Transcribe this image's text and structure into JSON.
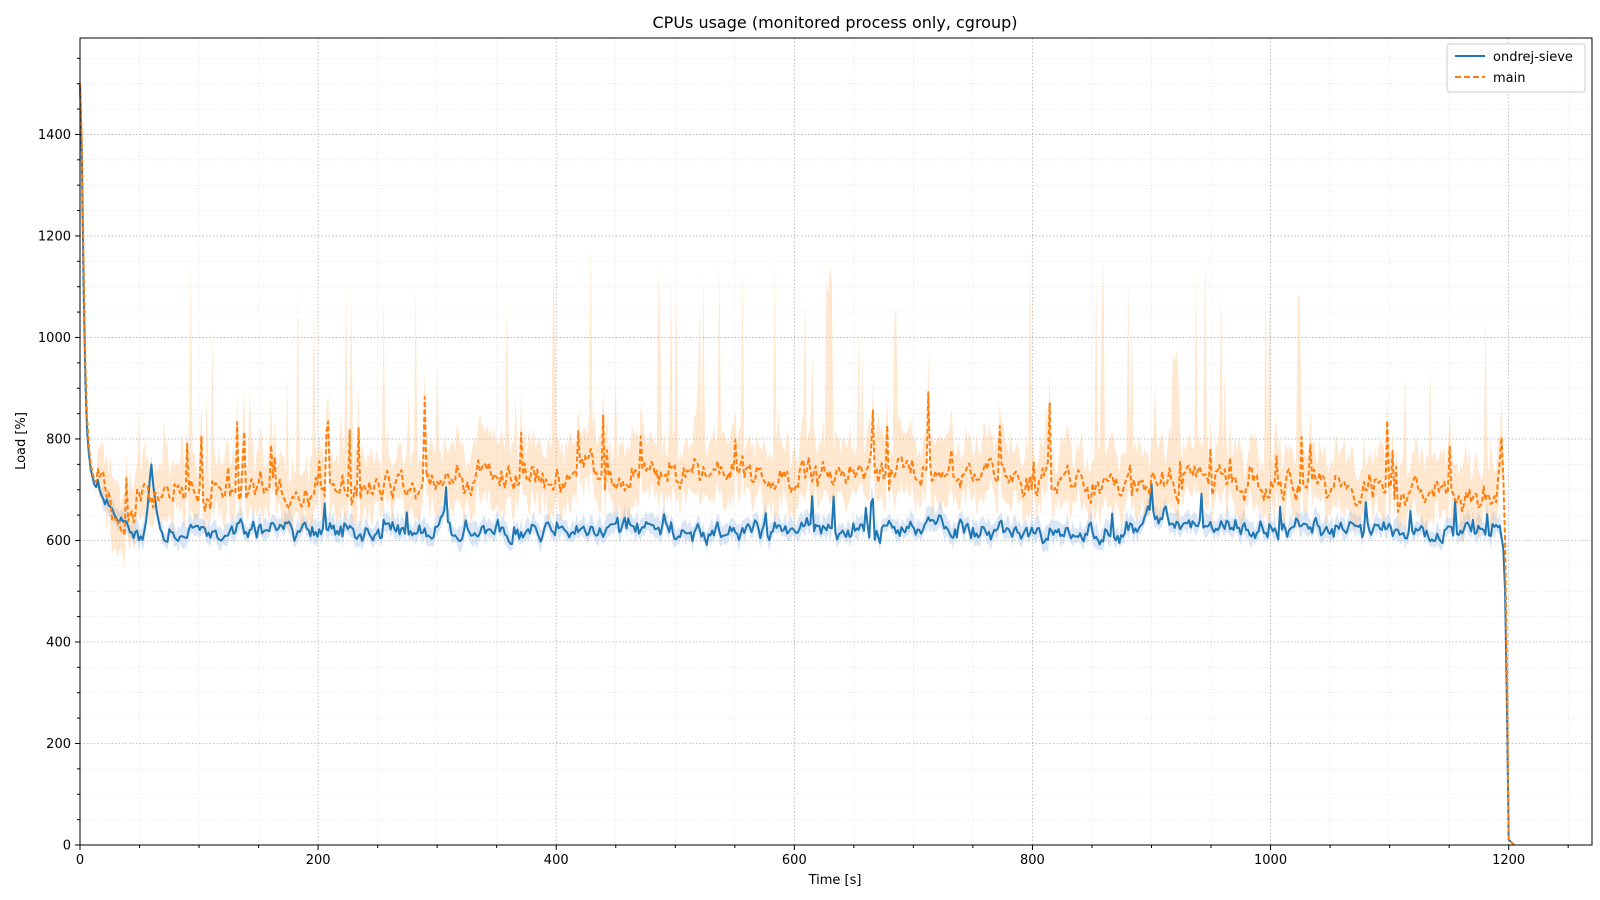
{
  "chart_data": {
    "type": "line",
    "title": "CPUs usage (monitored process only, cgroup)",
    "xlabel": "Time [s]",
    "ylabel": "Load [%]",
    "xlim": [
      0,
      1270
    ],
    "ylim": [
      0,
      1590
    ],
    "x_ticks": [
      0,
      200,
      400,
      600,
      800,
      1000,
      1200
    ],
    "x_minor_step": 50,
    "y_ticks": [
      0,
      200,
      400,
      600,
      800,
      1000,
      1200,
      1400
    ],
    "y_minor_step": 50,
    "grid": true,
    "legend_position": "top-right",
    "series": [
      {
        "name": "ondrej-sieve",
        "style": "solid",
        "color": "#1f77b4",
        "band_color": "#aec7e8",
        "x": [
          0,
          1,
          3,
          5,
          7,
          9,
          12,
          15,
          20,
          25,
          30,
          35,
          40,
          45,
          50,
          55,
          60,
          65,
          70,
          75,
          80,
          90,
          100,
          110,
          120,
          150,
          200,
          250,
          300,
          350,
          400,
          450,
          500,
          550,
          600,
          650,
          700,
          750,
          800,
          850,
          880,
          900,
          950,
          1000,
          1050,
          1100,
          1150,
          1190,
          1196,
          1198,
          1199,
          1200,
          1205
        ],
        "y": [
          1500,
          1450,
          1100,
          850,
          780,
          740,
          710,
          700,
          690,
          665,
          640,
          625,
          615,
          620,
          600,
          610,
          750,
          640,
          620,
          630,
          615,
          625,
          612,
          620,
          615,
          620,
          615,
          618,
          625,
          620,
          630,
          625,
          620,
          618,
          625,
          620,
          625,
          620,
          618,
          612,
          608,
          640,
          632,
          625,
          622,
          615,
          618,
          625,
          600,
          400,
          150,
          10,
          0
        ],
        "noise_amplitude": 28
      },
      {
        "name": "main",
        "style": "dashed",
        "color": "#ff7f0e",
        "band_color": "#ffbb78",
        "x": [
          0,
          1,
          3,
          5,
          7,
          9,
          12,
          15,
          20,
          25,
          30,
          35,
          40,
          45,
          47,
          50,
          55,
          60,
          65,
          70,
          75,
          80,
          90,
          100,
          110,
          120,
          150,
          200,
          250,
          300,
          350,
          400,
          420,
          450,
          500,
          550,
          600,
          650,
          695,
          700,
          750,
          800,
          850,
          880,
          900,
          950,
          1000,
          1050,
          1100,
          1150,
          1190,
          1194,
          1196,
          1198,
          1199,
          1200,
          1205
        ],
        "y": [
          1500,
          1470,
          1150,
          880,
          800,
          750,
          720,
          710,
          700,
          670,
          645,
          630,
          625,
          640,
          680,
          700,
          710,
          700,
          690,
          700,
          690,
          705,
          700,
          695,
          690,
          700,
          700,
          700,
          705,
          710,
          715,
          725,
          735,
          728,
          730,
          728,
          730,
          728,
          745,
          735,
          728,
          720,
          712,
          700,
          712,
          715,
          708,
          705,
          700,
          700,
          690,
          780,
          700,
          500,
          200,
          10,
          0
        ],
        "noise_amplitude": 40,
        "spike_amplitude": 160
      }
    ]
  }
}
